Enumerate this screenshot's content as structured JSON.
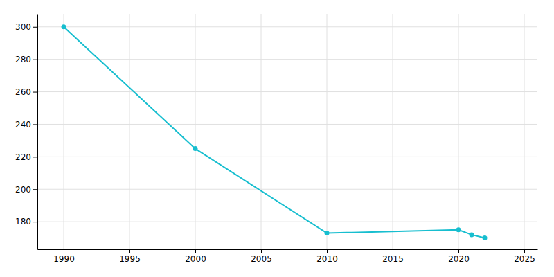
{
  "chart_data": {
    "type": "line",
    "x": [
      1990,
      2000,
      2010,
      2020,
      2021,
      2022
    ],
    "values": [
      300,
      225,
      173,
      175,
      172,
      170
    ],
    "color": "#17BECF",
    "marker": "circle",
    "xlim": [
      1988,
      2026
    ],
    "ylim": [
      163,
      308
    ],
    "xticks": [
      1990,
      1995,
      2000,
      2005,
      2010,
      2015,
      2020,
      2025
    ],
    "yticks": [
      180,
      200,
      220,
      240,
      260,
      280,
      300
    ],
    "grid": true
  }
}
